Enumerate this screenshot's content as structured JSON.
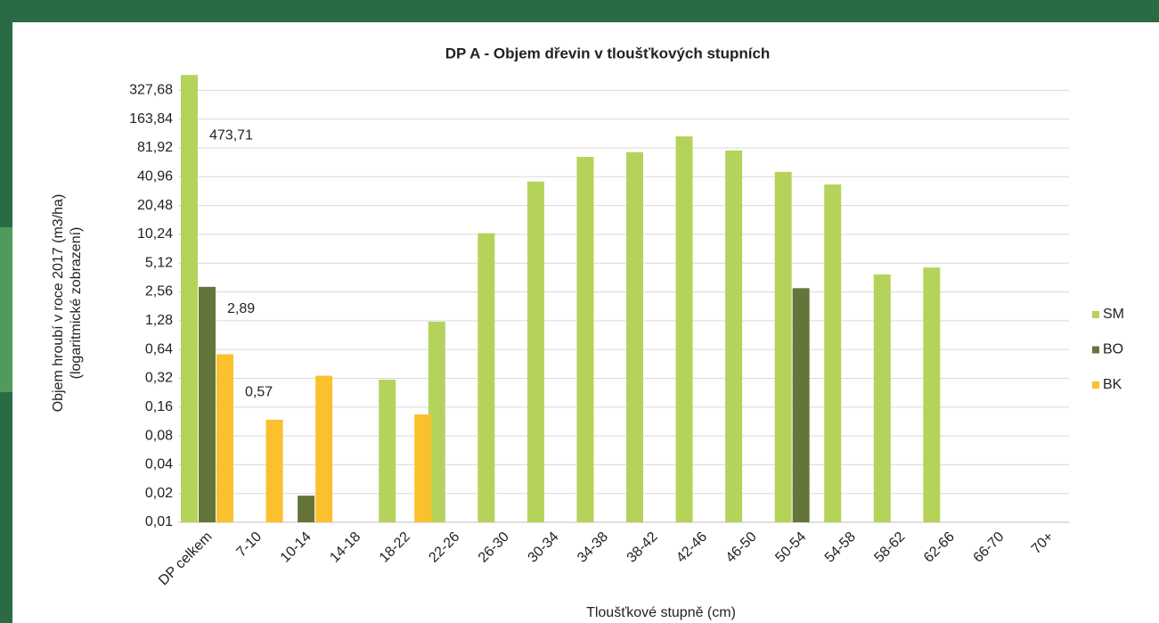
{
  "chart_data": {
    "type": "bar",
    "title": "DP A - Objem dřevin v tloušťkových stupních",
    "x_label": "Tloušťkové stupně (cm)",
    "y_label": [
      "Objem hroubí v roce 2017 (m3/ha)",
      "(logaritmické zobrazení)"
    ],
    "categories": [
      "DP celkem",
      "7-10",
      "10-14",
      "14-18",
      "18-22",
      "22-26",
      "26-30",
      "30-34",
      "34-38",
      "38-42",
      "42-46",
      "46-50",
      "50-54",
      "54-58",
      "58-62",
      "62-66",
      "66-70",
      "70+"
    ],
    "series": [
      {
        "name": "SM",
        "color": "#b5d35a",
        "values": [
          473.71,
          null,
          null,
          null,
          0.31,
          1.25,
          10.5,
          36.4,
          66,
          74,
          108,
          77,
          46,
          34,
          3.9,
          4.6,
          null,
          null
        ],
        "value_labels": [
          "473,71",
          null,
          null,
          null,
          null,
          null,
          null,
          null,
          null,
          null,
          null,
          null,
          null,
          null,
          null,
          null,
          null,
          null
        ]
      },
      {
        "name": "BO",
        "color": "#65753a",
        "values": [
          2.89,
          null,
          0.019,
          null,
          null,
          null,
          null,
          null,
          null,
          null,
          null,
          null,
          2.8,
          null,
          null,
          null,
          null,
          null
        ],
        "value_labels": [
          "2,89",
          null,
          null,
          null,
          null,
          null,
          null,
          null,
          null,
          null,
          null,
          null,
          null,
          null,
          null,
          null,
          null,
          null
        ]
      },
      {
        "name": "BK",
        "color": "#fbc02d",
        "values": [
          0.57,
          0.118,
          0.34,
          null,
          0.134,
          null,
          null,
          null,
          null,
          null,
          null,
          null,
          null,
          null,
          null,
          null,
          null,
          null
        ],
        "value_labels": [
          "0,57",
          null,
          null,
          null,
          null,
          null,
          null,
          null,
          null,
          null,
          null,
          null,
          null,
          null,
          null,
          null,
          null,
          null
        ]
      }
    ],
    "log_scale": true,
    "log_base": 2,
    "grid": true,
    "legend": "right",
    "ylim": [
      0.01,
      655.36
    ],
    "yticks": [
      {
        "value": 0.01,
        "label": "0,01"
      },
      {
        "value": 0.02,
        "label": "0,02"
      },
      {
        "value": 0.04,
        "label": "0,04"
      },
      {
        "value": 0.08,
        "label": "0,08"
      },
      {
        "value": 0.16,
        "label": "0,16"
      },
      {
        "value": 0.32,
        "label": "0,32"
      },
      {
        "value": 0.64,
        "label": "0,64"
      },
      {
        "value": 1.28,
        "label": "1,28"
      },
      {
        "value": 2.56,
        "label": "2,56"
      },
      {
        "value": 5.12,
        "label": "5,12"
      },
      {
        "value": 10.24,
        "label": "10,24"
      },
      {
        "value": 20.48,
        "label": "20,48"
      },
      {
        "value": 40.96,
        "label": "40,96"
      },
      {
        "value": 81.92,
        "label": "81,92"
      },
      {
        "value": 163.84,
        "label": "163,84"
      },
      {
        "value": 327.68,
        "label": "327,68"
      }
    ]
  }
}
